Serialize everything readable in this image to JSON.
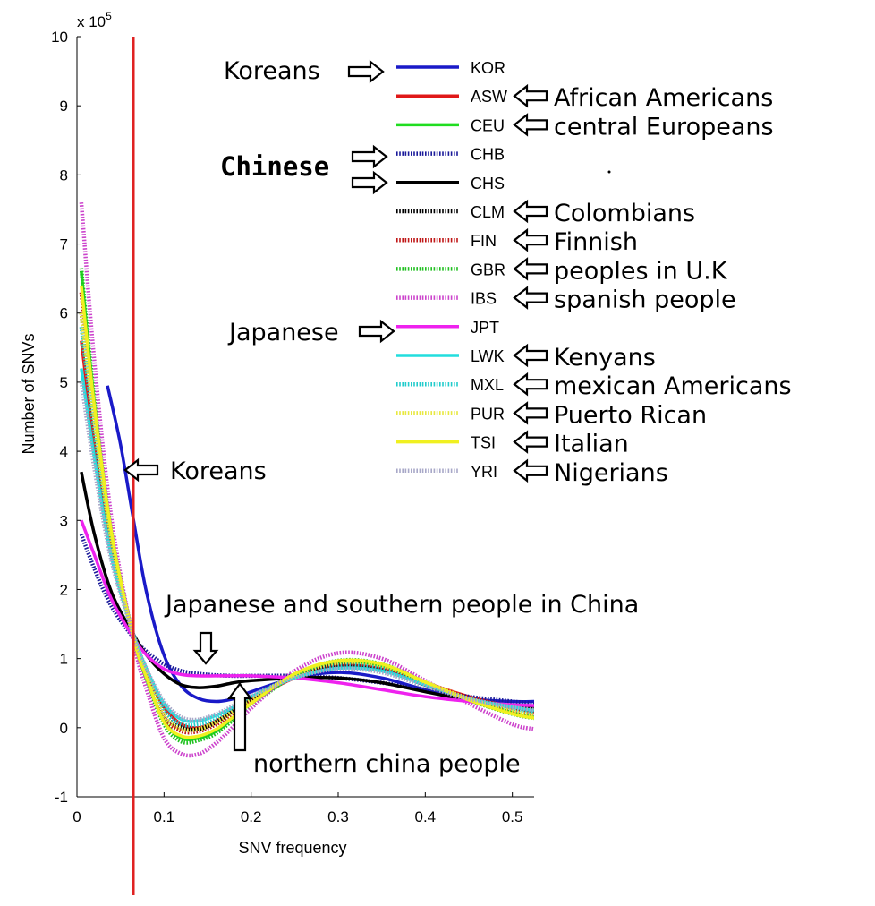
{
  "chart_data": {
    "type": "line",
    "title": "",
    "xlabel": "SNV frequency",
    "ylabel": "Number of SNVs",
    "y_multiplier": "x 10",
    "y_multiplier_exponent": "5",
    "xlim": [
      0,
      0.525
    ],
    "ylim": [
      -1,
      10
    ],
    "x_ticks": [
      0,
      0.1,
      0.2,
      0.3,
      0.4,
      0.5
    ],
    "x_tick_labels": [
      "0",
      "0.1",
      "0.2",
      "0.3",
      "0.4",
      "0.5"
    ],
    "y_ticks": [
      -1,
      0,
      1,
      2,
      3,
      4,
      5,
      6,
      7,
      8,
      9,
      10
    ],
    "y_tick_labels": [
      "-1",
      "0",
      "1",
      "2",
      "3",
      "4",
      "5",
      "6",
      "7",
      "8",
      "9",
      "10"
    ],
    "grid": false,
    "legend_position": "top-right",
    "vertical_marker": {
      "x": 0.065,
      "color": "#e02020"
    },
    "series": [
      {
        "name": "KOR",
        "label": "Koreans",
        "color": "#1a1ac8",
        "dash": "solid",
        "x": [
          0.035,
          0.05,
          0.065,
          0.08,
          0.1,
          0.12,
          0.14,
          0.16,
          0.18,
          0.2,
          0.25,
          0.3,
          0.35,
          0.4,
          0.45,
          0.5,
          0.525
        ],
        "y": [
          4.95,
          4.1,
          3.0,
          1.95,
          1.05,
          0.6,
          0.42,
          0.38,
          0.42,
          0.52,
          0.72,
          0.8,
          0.72,
          0.55,
          0.42,
          0.38,
          0.38
        ]
      },
      {
        "name": "ASW",
        "label": "African Americans",
        "color": "#e01818",
        "dash": "solid",
        "x": [
          0.005,
          0.02,
          0.04,
          0.065,
          0.08,
          0.1,
          0.12,
          0.14,
          0.16,
          0.18,
          0.2,
          0.25,
          0.3,
          0.35,
          0.4,
          0.45,
          0.5,
          0.525
        ],
        "y": [
          5.6,
          4.1,
          2.5,
          1.35,
          0.8,
          0.3,
          0.05,
          0.0,
          0.1,
          0.25,
          0.4,
          0.72,
          0.9,
          0.85,
          0.65,
          0.45,
          0.3,
          0.25
        ]
      },
      {
        "name": "CEU",
        "label": "central Europeans",
        "color": "#20dd20",
        "dash": "solid",
        "x": [
          0.005,
          0.02,
          0.04,
          0.065,
          0.08,
          0.1,
          0.12,
          0.14,
          0.16,
          0.18,
          0.2,
          0.25,
          0.3,
          0.35,
          0.4,
          0.45,
          0.5,
          0.525
        ],
        "y": [
          6.6,
          4.7,
          2.8,
          1.3,
          0.7,
          0.1,
          -0.15,
          -0.15,
          -0.05,
          0.15,
          0.35,
          0.75,
          0.95,
          0.9,
          0.65,
          0.4,
          0.22,
          0.15
        ]
      },
      {
        "name": "CHB",
        "label": "Chinese",
        "color": "#1a1a9a",
        "dash": "dotted",
        "x": [
          0.005,
          0.02,
          0.04,
          0.065,
          0.08,
          0.1,
          0.12,
          0.14,
          0.16,
          0.18,
          0.2,
          0.25,
          0.3,
          0.35,
          0.4,
          0.45,
          0.5,
          0.525
        ],
        "y": [
          2.8,
          2.3,
          1.75,
          1.3,
          1.1,
          0.92,
          0.82,
          0.78,
          0.76,
          0.75,
          0.75,
          0.75,
          0.72,
          0.65,
          0.55,
          0.45,
          0.38,
          0.35
        ]
      },
      {
        "name": "CHS",
        "label": "Chinese",
        "color": "#000000",
        "dash": "solid",
        "x": [
          0.005,
          0.02,
          0.04,
          0.065,
          0.08,
          0.1,
          0.12,
          0.14,
          0.16,
          0.18,
          0.2,
          0.25,
          0.3,
          0.35,
          0.4,
          0.45,
          0.5,
          0.525
        ],
        "y": [
          3.7,
          2.8,
          1.95,
          1.35,
          1.05,
          0.78,
          0.62,
          0.58,
          0.6,
          0.65,
          0.68,
          0.72,
          0.72,
          0.65,
          0.52,
          0.4,
          0.32,
          0.3
        ]
      },
      {
        "name": "CLM",
        "label": "Colombians",
        "color": "#000000",
        "dash": "dotted",
        "x": [
          0.005,
          0.02,
          0.04,
          0.065,
          0.08,
          0.1,
          0.12,
          0.14,
          0.16,
          0.18,
          0.2,
          0.25,
          0.3,
          0.35,
          0.4,
          0.45,
          0.5,
          0.525
        ],
        "y": [
          6.0,
          4.4,
          2.7,
          1.3,
          0.78,
          0.2,
          0.0,
          -0.02,
          0.08,
          0.25,
          0.42,
          0.75,
          0.9,
          0.85,
          0.62,
          0.42,
          0.28,
          0.22
        ]
      },
      {
        "name": "FIN",
        "label": "Finnish",
        "color": "#c01818",
        "dash": "dotted",
        "x": [
          0.005,
          0.02,
          0.04,
          0.065,
          0.08,
          0.1,
          0.12,
          0.14,
          0.16,
          0.18,
          0.2,
          0.25,
          0.3,
          0.35,
          0.4,
          0.45,
          0.5,
          0.525
        ],
        "y": [
          6.3,
          4.6,
          2.75,
          1.3,
          0.75,
          0.15,
          -0.05,
          -0.05,
          0.05,
          0.2,
          0.38,
          0.75,
          0.92,
          0.88,
          0.65,
          0.42,
          0.25,
          0.2
        ]
      },
      {
        "name": "GBR",
        "label": "peoples in U.K",
        "color": "#20c020",
        "dash": "dotted",
        "x": [
          0.005,
          0.02,
          0.04,
          0.065,
          0.08,
          0.1,
          0.12,
          0.14,
          0.16,
          0.18,
          0.2,
          0.25,
          0.3,
          0.35,
          0.4,
          0.45,
          0.5,
          0.525
        ],
        "y": [
          6.65,
          4.75,
          2.8,
          1.3,
          0.7,
          0.05,
          -0.2,
          -0.18,
          -0.08,
          0.12,
          0.32,
          0.76,
          0.97,
          0.92,
          0.66,
          0.4,
          0.2,
          0.14
        ]
      },
      {
        "name": "IBS",
        "label": "spanish people",
        "color": "#cc44cc",
        "dash": "dotted",
        "x": [
          0.005,
          0.02,
          0.04,
          0.065,
          0.08,
          0.1,
          0.12,
          0.14,
          0.16,
          0.18,
          0.2,
          0.25,
          0.3,
          0.35,
          0.4,
          0.45,
          0.5,
          0.525
        ],
        "y": [
          7.6,
          5.3,
          3.0,
          1.25,
          0.55,
          -0.15,
          -0.38,
          -0.38,
          -0.22,
          0.02,
          0.28,
          0.82,
          1.08,
          1.0,
          0.68,
          0.35,
          0.05,
          -0.02
        ]
      },
      {
        "name": "JPT",
        "label": "Japanese",
        "color": "#ee22ee",
        "dash": "solid",
        "x": [
          0.005,
          0.02,
          0.04,
          0.065,
          0.08,
          0.1,
          0.12,
          0.14,
          0.16,
          0.18,
          0.2,
          0.25,
          0.3,
          0.35,
          0.4,
          0.45,
          0.5,
          0.525
        ],
        "y": [
          3.0,
          2.5,
          1.85,
          1.3,
          1.05,
          0.85,
          0.77,
          0.75,
          0.75,
          0.75,
          0.75,
          0.72,
          0.65,
          0.55,
          0.45,
          0.38,
          0.33,
          0.32
        ]
      },
      {
        "name": "LWK",
        "label": "Kenyans",
        "color": "#22dddd",
        "dash": "solid",
        "x": [
          0.005,
          0.02,
          0.04,
          0.065,
          0.08,
          0.1,
          0.12,
          0.14,
          0.16,
          0.18,
          0.2,
          0.25,
          0.3,
          0.35,
          0.4,
          0.45,
          0.5,
          0.525
        ],
        "y": [
          5.2,
          3.9,
          2.45,
          1.35,
          0.85,
          0.35,
          0.12,
          0.1,
          0.18,
          0.3,
          0.45,
          0.72,
          0.86,
          0.82,
          0.62,
          0.42,
          0.3,
          0.25
        ]
      },
      {
        "name": "MXL",
        "label": "mexican Americans",
        "color": "#22cccc",
        "dash": "dotted",
        "x": [
          0.005,
          0.02,
          0.04,
          0.065,
          0.08,
          0.1,
          0.12,
          0.14,
          0.16,
          0.18,
          0.2,
          0.25,
          0.3,
          0.35,
          0.4,
          0.45,
          0.5,
          0.525
        ],
        "y": [
          5.8,
          4.3,
          2.65,
          1.3,
          0.8,
          0.25,
          0.05,
          0.05,
          0.12,
          0.27,
          0.43,
          0.75,
          0.9,
          0.85,
          0.62,
          0.42,
          0.28,
          0.22
        ]
      },
      {
        "name": "PUR",
        "label": "Puerto Rican",
        "color": "#e8e840",
        "dash": "dotted",
        "x": [
          0.005,
          0.02,
          0.04,
          0.065,
          0.08,
          0.1,
          0.12,
          0.14,
          0.16,
          0.18,
          0.2,
          0.25,
          0.3,
          0.35,
          0.4,
          0.45,
          0.5,
          0.525
        ],
        "y": [
          6.0,
          4.45,
          2.7,
          1.3,
          0.78,
          0.18,
          -0.02,
          -0.02,
          0.08,
          0.24,
          0.4,
          0.76,
          0.94,
          0.9,
          0.66,
          0.42,
          0.24,
          0.18
        ]
      },
      {
        "name": "TSI",
        "label": "Italian",
        "color": "#f0f020",
        "dash": "solid",
        "x": [
          0.005,
          0.02,
          0.04,
          0.065,
          0.08,
          0.1,
          0.12,
          0.14,
          0.16,
          0.18,
          0.2,
          0.25,
          0.3,
          0.35,
          0.4,
          0.45,
          0.5,
          0.525
        ],
        "y": [
          6.4,
          4.65,
          2.8,
          1.3,
          0.72,
          0.08,
          -0.12,
          -0.12,
          -0.02,
          0.16,
          0.35,
          0.78,
          0.97,
          0.92,
          0.66,
          0.4,
          0.2,
          0.14
        ]
      },
      {
        "name": "YRI",
        "label": "Nigerians",
        "color": "#a8a8c8",
        "dash": "dotted",
        "x": [
          0.005,
          0.02,
          0.04,
          0.065,
          0.08,
          0.1,
          0.12,
          0.14,
          0.16,
          0.18,
          0.2,
          0.25,
          0.3,
          0.35,
          0.4,
          0.45,
          0.5,
          0.525
        ],
        "y": [
          5.0,
          3.75,
          2.4,
          1.35,
          0.85,
          0.38,
          0.15,
          0.12,
          0.2,
          0.32,
          0.46,
          0.72,
          0.85,
          0.8,
          0.6,
          0.42,
          0.3,
          0.26
        ]
      }
    ],
    "annotations": {
      "legend_left": [
        {
          "text": "Koreans",
          "for": "KOR"
        },
        {
          "text": "Chinese",
          "for": "CHB/CHS"
        },
        {
          "text": "Japanese",
          "for": "JPT"
        }
      ],
      "in_plot": [
        {
          "text": "Koreans"
        },
        {
          "text": "Japanese and southern people in China"
        },
        {
          "text": "northern china people"
        }
      ]
    }
  }
}
